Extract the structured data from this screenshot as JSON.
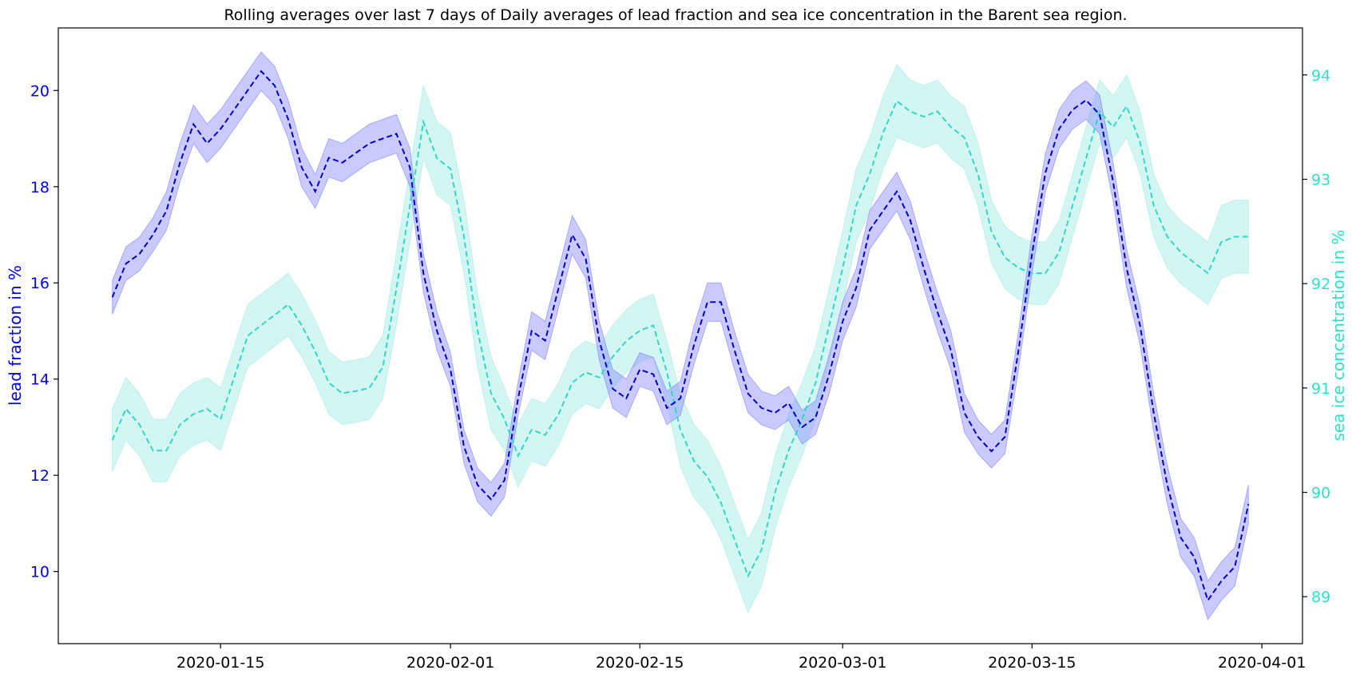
{
  "chart_data": {
    "type": "line",
    "title": "Rolling averages over last 7 days of Daily averages of lead fraction and sea ice concentration in the Barent sea region.",
    "xlabel": "",
    "x_tick_labels": [
      "2020-01-15",
      "2020-02-01",
      "2020-02-15",
      "2020-03-01",
      "2020-03-15",
      "2020-04-01"
    ],
    "x_tick_dates": [
      "2020-01-15",
      "2020-02-01",
      "2020-02-15",
      "2020-03-01",
      "2020-03-15",
      "2020-04-01"
    ],
    "xlim": [
      "2020-01-03",
      "2020-04-04"
    ],
    "grid": false,
    "left_axis": {
      "label": "lead fraction in %",
      "color": "#0000ee",
      "ylim": [
        8.5,
        21.3
      ],
      "ticks": [
        10,
        12,
        14,
        16,
        18,
        20
      ],
      "tick_labels": [
        "10",
        "12",
        "14",
        "16",
        "18",
        "20"
      ]
    },
    "right_axis": {
      "label": "sea ice concentration in %",
      "color": "#2ee0c8",
      "ylim": [
        88.55,
        94.45
      ],
      "ticks": [
        89,
        90,
        91,
        92,
        93,
        94
      ],
      "tick_labels": [
        "89",
        "90",
        "91",
        "92",
        "93",
        "94"
      ]
    },
    "colors": {
      "lead_line": "#0000cc",
      "lead_band": "#8080ff",
      "ice_line": "#30d8c8",
      "ice_band": "#a0ece4"
    },
    "dates": [
      "2020-01-07",
      "2020-01-08",
      "2020-01-09",
      "2020-01-10",
      "2020-01-11",
      "2020-01-12",
      "2020-01-13",
      "2020-01-14",
      "2020-01-15",
      "2020-01-16",
      "2020-01-17",
      "2020-01-18",
      "2020-01-19",
      "2020-01-20",
      "2020-01-21",
      "2020-01-22",
      "2020-01-23",
      "2020-01-24",
      "2020-01-25",
      "2020-01-26",
      "2020-01-27",
      "2020-01-28",
      "2020-01-29",
      "2020-01-30",
      "2020-01-31",
      "2020-02-01",
      "2020-02-02",
      "2020-02-03",
      "2020-02-04",
      "2020-02-05",
      "2020-02-06",
      "2020-02-07",
      "2020-02-08",
      "2020-02-09",
      "2020-02-10",
      "2020-02-11",
      "2020-02-12",
      "2020-02-13",
      "2020-02-14",
      "2020-02-15",
      "2020-02-16",
      "2020-02-17",
      "2020-02-18",
      "2020-02-19",
      "2020-02-20",
      "2020-02-21",
      "2020-02-22",
      "2020-02-23",
      "2020-02-24",
      "2020-02-25",
      "2020-02-26",
      "2020-02-27",
      "2020-02-28",
      "2020-02-29",
      "2020-03-01",
      "2020-03-02",
      "2020-03-03",
      "2020-03-04",
      "2020-03-05",
      "2020-03-06",
      "2020-03-07",
      "2020-03-08",
      "2020-03-09",
      "2020-03-10",
      "2020-03-11",
      "2020-03-12",
      "2020-03-13",
      "2020-03-14",
      "2020-03-15",
      "2020-03-16",
      "2020-03-17",
      "2020-03-18",
      "2020-03-19",
      "2020-03-20",
      "2020-03-21",
      "2020-03-22",
      "2020-03-23",
      "2020-03-24",
      "2020-03-25",
      "2020-03-26",
      "2020-03-27",
      "2020-03-28",
      "2020-03-29",
      "2020-03-30",
      "2020-03-31"
    ],
    "series": [
      {
        "name": "lead fraction",
        "axis": "left",
        "values": [
          15.7,
          16.4,
          16.6,
          17.0,
          17.5,
          18.5,
          19.3,
          18.9,
          19.2,
          19.6,
          20.0,
          20.4,
          20.1,
          19.4,
          18.4,
          17.9,
          18.6,
          18.5,
          18.7,
          18.9,
          19.0,
          19.1,
          18.4,
          16.2,
          15.0,
          14.2,
          12.6,
          11.8,
          11.5,
          11.9,
          13.6,
          15.0,
          14.8,
          15.9,
          17.0,
          16.5,
          14.8,
          13.8,
          13.6,
          14.2,
          14.1,
          13.4,
          13.6,
          14.7,
          15.6,
          15.6,
          14.6,
          13.7,
          13.4,
          13.3,
          13.5,
          13.0,
          13.2,
          14.1,
          15.2,
          15.9,
          17.1,
          17.5,
          17.9,
          17.3,
          16.3,
          15.4,
          14.6,
          13.3,
          12.8,
          12.5,
          12.8,
          14.6,
          16.6,
          18.3,
          19.2,
          19.6,
          19.8,
          19.5,
          18.1,
          16.3,
          15.1,
          13.3,
          11.8,
          10.7,
          10.3,
          9.4,
          9.8,
          10.1,
          11.4
        ],
        "band_half_width": [
          0.35,
          0.35,
          0.35,
          0.35,
          0.4,
          0.4,
          0.4,
          0.4,
          0.4,
          0.4,
          0.4,
          0.4,
          0.4,
          0.4,
          0.4,
          0.35,
          0.4,
          0.4,
          0.4,
          0.4,
          0.4,
          0.4,
          0.4,
          0.4,
          0.4,
          0.35,
          0.35,
          0.35,
          0.35,
          0.35,
          0.35,
          0.4,
          0.4,
          0.4,
          0.4,
          0.4,
          0.4,
          0.4,
          0.4,
          0.35,
          0.35,
          0.35,
          0.35,
          0.4,
          0.4,
          0.4,
          0.4,
          0.4,
          0.35,
          0.35,
          0.35,
          0.35,
          0.35,
          0.4,
          0.4,
          0.4,
          0.4,
          0.4,
          0.4,
          0.4,
          0.4,
          0.4,
          0.4,
          0.4,
          0.35,
          0.35,
          0.35,
          0.4,
          0.4,
          0.4,
          0.4,
          0.4,
          0.4,
          0.4,
          0.4,
          0.4,
          0.4,
          0.4,
          0.4,
          0.4,
          0.4,
          0.4,
          0.4,
          0.4,
          0.4
        ]
      },
      {
        "name": "sea ice concentration",
        "axis": "right",
        "values": [
          90.5,
          90.8,
          90.65,
          90.4,
          90.4,
          90.65,
          90.75,
          90.8,
          90.7,
          91.1,
          91.5,
          91.6,
          91.7,
          91.8,
          91.6,
          91.35,
          91.05,
          90.95,
          90.97,
          91.0,
          91.2,
          91.95,
          92.75,
          93.55,
          93.2,
          93.1,
          92.45,
          91.55,
          90.95,
          90.7,
          90.35,
          90.6,
          90.55,
          90.75,
          91.05,
          91.15,
          91.1,
          91.3,
          91.45,
          91.55,
          91.6,
          91.15,
          90.6,
          90.3,
          90.15,
          89.9,
          89.55,
          89.2,
          89.45,
          90.0,
          90.4,
          90.7,
          91.05,
          91.6,
          92.15,
          92.75,
          93.05,
          93.45,
          93.75,
          93.65,
          93.6,
          93.65,
          93.5,
          93.4,
          93.05,
          92.5,
          92.25,
          92.15,
          92.1,
          92.1,
          92.3,
          92.75,
          93.2,
          93.65,
          93.5,
          93.7,
          93.35,
          92.75,
          92.45,
          92.3,
          92.2,
          92.1,
          92.4,
          92.45,
          92.45
        ],
        "band_half_width": [
          0.3,
          0.3,
          0.3,
          0.3,
          0.3,
          0.3,
          0.3,
          0.3,
          0.3,
          0.3,
          0.3,
          0.3,
          0.3,
          0.3,
          0.3,
          0.3,
          0.3,
          0.3,
          0.3,
          0.3,
          0.3,
          0.35,
          0.35,
          0.35,
          0.35,
          0.35,
          0.35,
          0.35,
          0.35,
          0.3,
          0.3,
          0.3,
          0.3,
          0.3,
          0.3,
          0.3,
          0.3,
          0.3,
          0.3,
          0.3,
          0.3,
          0.3,
          0.35,
          0.35,
          0.35,
          0.35,
          0.35,
          0.35,
          0.35,
          0.35,
          0.35,
          0.35,
          0.35,
          0.35,
          0.35,
          0.35,
          0.35,
          0.35,
          0.35,
          0.3,
          0.3,
          0.3,
          0.3,
          0.3,
          0.3,
          0.3,
          0.3,
          0.3,
          0.3,
          0.3,
          0.3,
          0.3,
          0.3,
          0.3,
          0.3,
          0.3,
          0.3,
          0.3,
          0.3,
          0.3,
          0.3,
          0.3,
          0.35,
          0.35,
          0.35
        ]
      }
    ]
  }
}
